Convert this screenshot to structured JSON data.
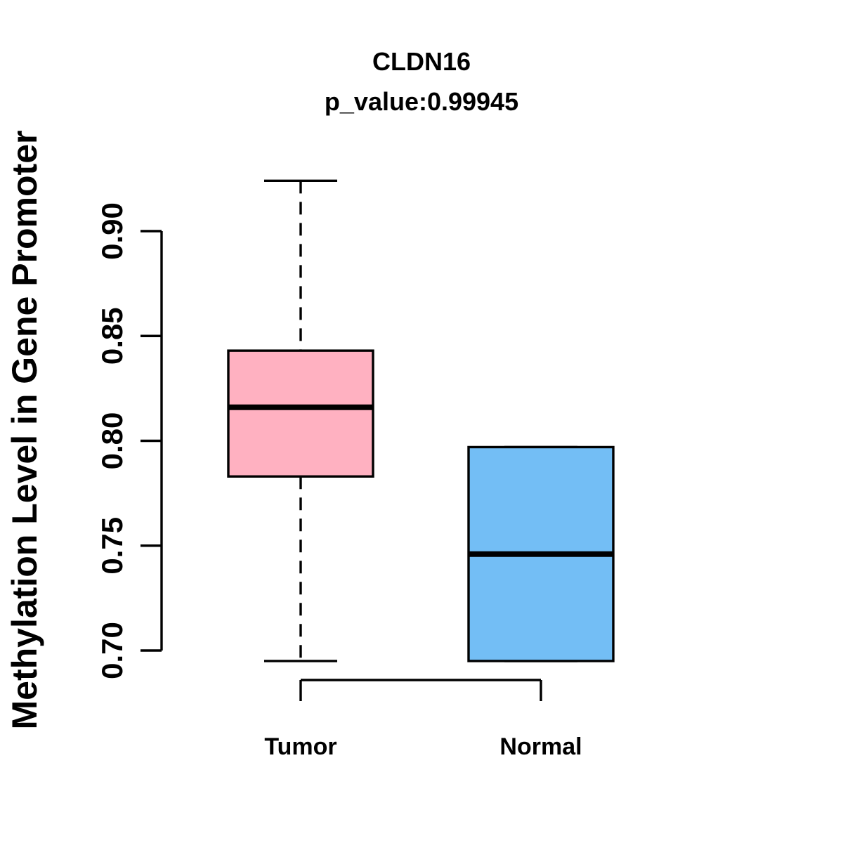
{
  "title": "CLDN16",
  "subtitle": "p_value:0.99945",
  "chart_data": {
    "type": "boxplot",
    "title": "CLDN16",
    "subtitle": "p_value:0.99945",
    "xlabel": "",
    "ylabel": "Methylation Level in Gene Promoter",
    "ylim": [
      0.695,
      0.925
    ],
    "yticks": [
      0.7,
      0.75,
      0.8,
      0.85,
      0.9
    ],
    "ytick_labels": [
      "0.70",
      "0.75",
      "0.80",
      "0.85",
      "0.90"
    ],
    "grid": false,
    "legend": "none",
    "categories": [
      "Tumor",
      "Normal"
    ],
    "groups": [
      {
        "label": "Tumor",
        "fill_color": "#FFB1C1",
        "lower_whisker": 0.695,
        "q1": 0.783,
        "median": 0.816,
        "q3": 0.843,
        "upper_whisker": 0.924
      },
      {
        "label": "Normal",
        "fill_color": "#73BEF5",
        "lower_whisker": 0.695,
        "q1": 0.695,
        "median": 0.746,
        "q3": 0.797,
        "upper_whisker": 0.797
      }
    ]
  },
  "colors": {
    "stroke": "#000000",
    "background": "#FFFFFF",
    "tumor_fill": "#FFB1C1",
    "normal_fill": "#73BEF5"
  }
}
